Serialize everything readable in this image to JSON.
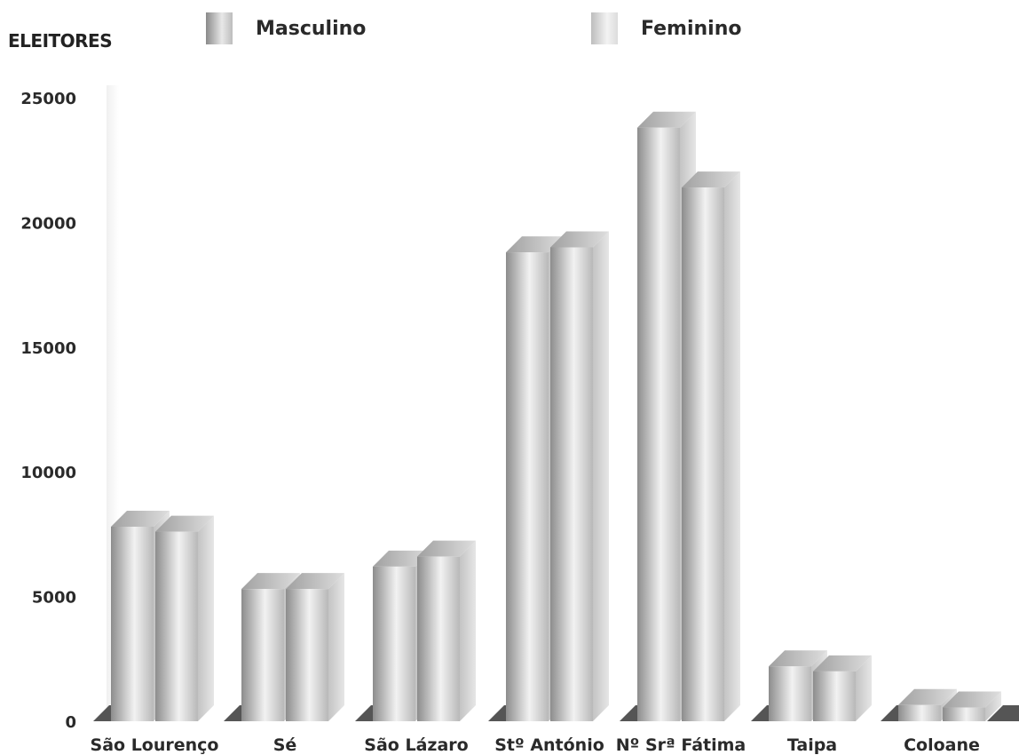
{
  "chart_data": {
    "type": "bar",
    "ylabel": "ELEITORES",
    "ylim": [
      0,
      25000
    ],
    "yticks": [
      "0",
      "5000",
      "10000",
      "15000",
      "20000",
      "25000"
    ],
    "categories": [
      "São Lourenço",
      "Sé",
      "São Lázaro",
      "Stº António",
      "Nº Srª Fátima",
      "Taipa",
      "Coloane"
    ],
    "series": [
      {
        "name": "Masculino",
        "values": [
          7800,
          5300,
          6200,
          18800,
          23800,
          2200,
          650
        ]
      },
      {
        "name": "Feminino",
        "values": [
          7600,
          5300,
          6600,
          19000,
          21400,
          2000,
          550
        ]
      }
    ],
    "legend_position": "top",
    "grid": false,
    "colors": {
      "masculino": "#a9a9a9",
      "feminino": "#d3d3d3"
    }
  }
}
